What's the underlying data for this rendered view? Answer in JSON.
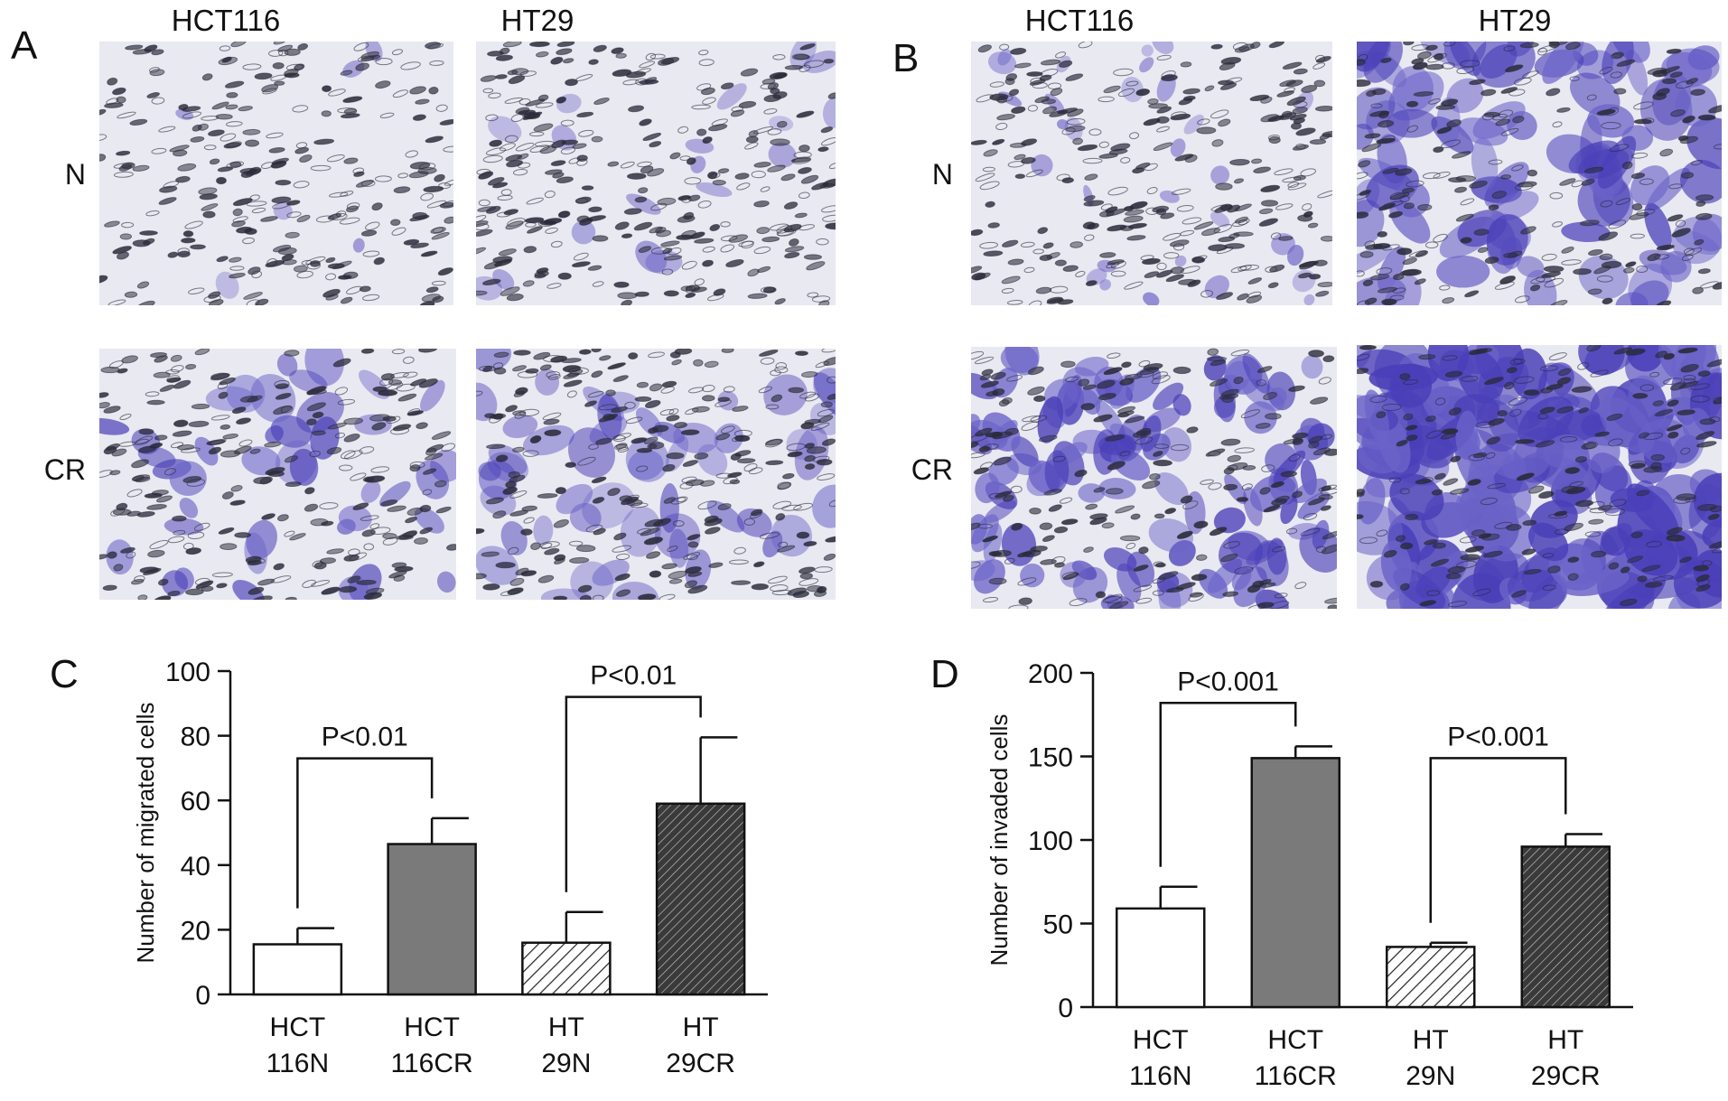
{
  "panels": {
    "A": {
      "letter": "A",
      "columns": [
        "HCT116",
        "HT29"
      ],
      "rows": [
        "N",
        "CR"
      ]
    },
    "B": {
      "letter": "B",
      "columns": [
        "HCT116",
        "HT29"
      ],
      "rows": [
        "N",
        "CR"
      ]
    },
    "C": {
      "letter": "C"
    },
    "D": {
      "letter": "D"
    }
  },
  "colors": {
    "stain": "#6b63c8",
    "stain_dark": "#4a3fb8",
    "pore": "#2a2a3a",
    "bar_gray": "#7a7a7a",
    "bar_dark": "#3a3a3a",
    "axis": "#111111"
  },
  "chart_data": [
    {
      "type": "bar",
      "panel": "C",
      "title": "",
      "xlabel": "",
      "ylabel": "Number of migrated cells",
      "ylim": [
        0,
        100
      ],
      "yticks": [
        0,
        20,
        40,
        60,
        80,
        100
      ],
      "categories": [
        [
          "HCT",
          "116N"
        ],
        [
          "HCT",
          "116CR"
        ],
        [
          "HT",
          "29N"
        ],
        [
          "HT",
          "29CR"
        ]
      ],
      "values": [
        15.5,
        46.5,
        16,
        59
      ],
      "errors": [
        5,
        8,
        9.5,
        20.5
      ],
      "fills": [
        "white",
        "gray",
        "hatch-light",
        "hatch-dark"
      ],
      "comparisons": [
        {
          "from": 0,
          "to": 1,
          "label": "P<0.01",
          "y": 73
        },
        {
          "from": 2,
          "to": 3,
          "label": "P<0.01",
          "y": 92
        }
      ]
    },
    {
      "type": "bar",
      "panel": "D",
      "title": "",
      "xlabel": "",
      "ylabel": "Number of invaded cells",
      "ylim": [
        0,
        200
      ],
      "yticks": [
        0,
        50,
        100,
        150,
        200
      ],
      "categories": [
        [
          "HCT",
          "116N"
        ],
        [
          "HCT",
          "116CR"
        ],
        [
          "HT",
          "29N"
        ],
        [
          "HT",
          "29CR"
        ]
      ],
      "values": [
        59,
        149,
        36,
        96
      ],
      "errors": [
        13,
        7,
        2.5,
        7.5
      ],
      "fills": [
        "white",
        "gray",
        "hatch-light",
        "hatch-dark"
      ],
      "comparisons": [
        {
          "from": 0,
          "to": 1,
          "label": "P<0.001",
          "y": 182
        },
        {
          "from": 2,
          "to": 3,
          "label": "P<0.001",
          "y": 149
        }
      ]
    }
  ]
}
